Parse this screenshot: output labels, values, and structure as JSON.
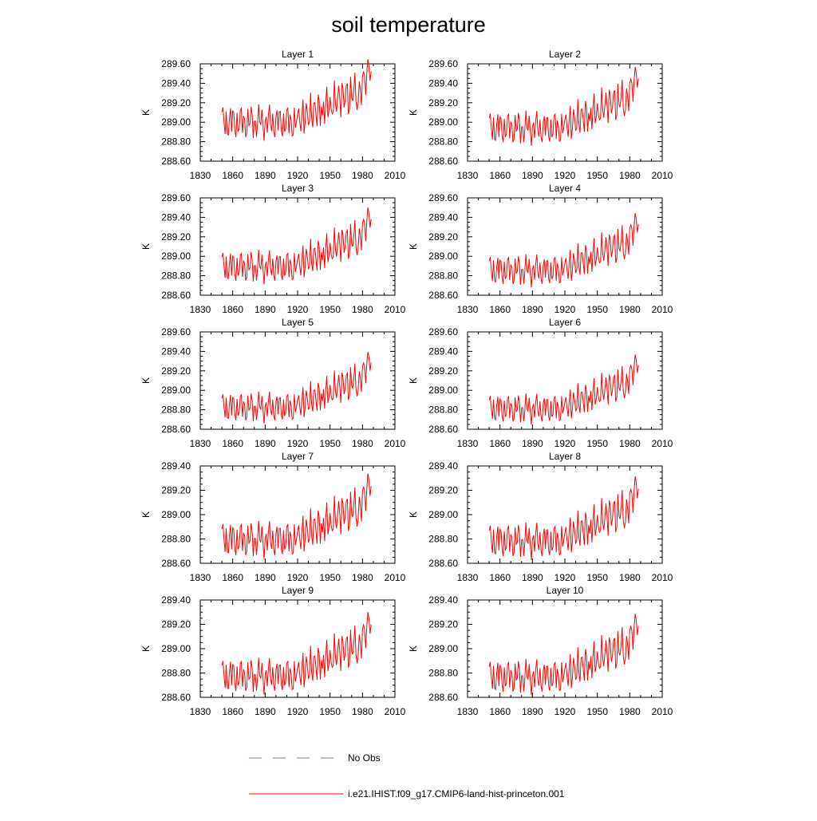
{
  "figure": {
    "title": "soil temperature",
    "legend": [
      {
        "label": "No Obs",
        "color": "#7a7fcc",
        "style": "dashed"
      },
      {
        "label": "i.e21.IHIST.f09_g17.CMIP6-land-hist-princeton.001",
        "color": "#ff0000",
        "style": "solid"
      }
    ]
  },
  "chart_data": [
    {
      "type": "line",
      "title": "Layer 1",
      "xlabel": "",
      "ylabel": "K",
      "xlim": [
        1830,
        2010
      ],
      "ylim": [
        288.6,
        289.6
      ],
      "xticks": [
        "1830",
        "1860",
        "1890",
        "1920",
        "1950",
        "1980",
        "2010"
      ],
      "yticks": [
        "288.60",
        "288.80",
        "289.00",
        "289.20",
        "289.40",
        "289.60"
      ],
      "offset": 0.12,
      "amp": 1.0,
      "series": [
        {
          "color": "#ff0000",
          "x_start": 1850,
          "x_end": 1988
        }
      ]
    },
    {
      "type": "line",
      "title": "Layer 2",
      "xlabel": "",
      "ylabel": "K",
      "xlim": [
        1830,
        2010
      ],
      "ylim": [
        288.6,
        289.6
      ],
      "xticks": [
        "1830",
        "1860",
        "1890",
        "1920",
        "1950",
        "1980",
        "2010"
      ],
      "yticks": [
        "288.60",
        "288.80",
        "289.00",
        "289.20",
        "289.40",
        "289.60"
      ],
      "offset": 0.07,
      "amp": 0.97,
      "series": [
        {
          "color": "#ff0000",
          "x_start": 1850,
          "x_end": 1988
        }
      ]
    },
    {
      "type": "line",
      "title": "Layer 3",
      "xlabel": "",
      "ylabel": "K",
      "xlim": [
        1830,
        2010
      ],
      "ylim": [
        288.6,
        289.6
      ],
      "xticks": [
        "1830",
        "1860",
        "1890",
        "1920",
        "1950",
        "1980",
        "2010"
      ],
      "yticks": [
        "288.60",
        "288.80",
        "289.00",
        "289.20",
        "289.40",
        "289.60"
      ],
      "offset": 0.03,
      "amp": 0.94,
      "series": [
        {
          "color": "#ff0000",
          "x_start": 1850,
          "x_end": 1988
        }
      ]
    },
    {
      "type": "line",
      "title": "Layer 4",
      "xlabel": "",
      "ylabel": "K",
      "xlim": [
        1830,
        2010
      ],
      "ylim": [
        288.6,
        289.6
      ],
      "xticks": [
        "1830",
        "1860",
        "1890",
        "1920",
        "1950",
        "1980",
        "2010"
      ],
      "yticks": [
        "288.60",
        "288.80",
        "289.00",
        "289.20",
        "289.40",
        "289.60"
      ],
      "offset": 0.0,
      "amp": 0.91,
      "series": [
        {
          "color": "#ff0000",
          "x_start": 1850,
          "x_end": 1988
        }
      ]
    },
    {
      "type": "line",
      "title": "Layer 5",
      "xlabel": "",
      "ylabel": "K",
      "xlim": [
        1830,
        2010
      ],
      "ylim": [
        288.6,
        289.6
      ],
      "xticks": [
        "1830",
        "1860",
        "1890",
        "1920",
        "1950",
        "1980",
        "2010"
      ],
      "yticks": [
        "288.60",
        "288.80",
        "289.00",
        "289.20",
        "289.40",
        "289.60"
      ],
      "offset": -0.02,
      "amp": 0.88,
      "series": [
        {
          "color": "#ff0000",
          "x_start": 1850,
          "x_end": 1988
        }
      ]
    },
    {
      "type": "line",
      "title": "Layer 6",
      "xlabel": "",
      "ylabel": "K",
      "xlim": [
        1830,
        2010
      ],
      "ylim": [
        288.6,
        289.6
      ],
      "xticks": [
        "1830",
        "1860",
        "1890",
        "1920",
        "1950",
        "1980",
        "2010"
      ],
      "yticks": [
        "288.60",
        "288.80",
        "289.00",
        "289.20",
        "289.40",
        "289.60"
      ],
      "offset": -0.03,
      "amp": 0.86,
      "series": [
        {
          "color": "#ff0000",
          "x_start": 1850,
          "x_end": 1988
        }
      ]
    },
    {
      "type": "line",
      "title": "Layer 7",
      "xlabel": "",
      "ylabel": "K",
      "xlim": [
        1830,
        2010
      ],
      "ylim": [
        288.6,
        289.4
      ],
      "xticks": [
        "1830",
        "1860",
        "1890",
        "1920",
        "1950",
        "1980",
        "2010"
      ],
      "yticks": [
        "288.60",
        "288.80",
        "289.00",
        "289.20",
        "289.40"
      ],
      "offset": -0.04,
      "amp": 0.84,
      "series": [
        {
          "color": "#ff0000",
          "x_start": 1850,
          "x_end": 1988
        }
      ]
    },
    {
      "type": "line",
      "title": "Layer 8",
      "xlabel": "",
      "ylabel": "K",
      "xlim": [
        1830,
        2010
      ],
      "ylim": [
        288.6,
        289.4
      ],
      "xticks": [
        "1830",
        "1860",
        "1890",
        "1920",
        "1950",
        "1980",
        "2010"
      ],
      "yticks": [
        "288.60",
        "288.80",
        "289.00",
        "289.20",
        "289.40"
      ],
      "offset": -0.045,
      "amp": 0.82,
      "series": [
        {
          "color": "#ff0000",
          "x_start": 1850,
          "x_end": 1988
        }
      ]
    },
    {
      "type": "line",
      "title": "Layer 9",
      "xlabel": "",
      "ylabel": "K",
      "xlim": [
        1830,
        2010
      ],
      "ylim": [
        288.6,
        289.4
      ],
      "xticks": [
        "1830",
        "1860",
        "1890",
        "1920",
        "1950",
        "1980",
        "2010"
      ],
      "yticks": [
        "288.60",
        "288.80",
        "289.00",
        "289.20",
        "289.40"
      ],
      "offset": -0.05,
      "amp": 0.81,
      "series": [
        {
          "color": "#ff0000",
          "x_start": 1850,
          "x_end": 1988
        }
      ]
    },
    {
      "type": "line",
      "title": "Layer 10",
      "xlabel": "",
      "ylabel": "K",
      "xlim": [
        1830,
        2010
      ],
      "ylim": [
        288.6,
        289.4
      ],
      "xticks": [
        "1830",
        "1860",
        "1890",
        "1920",
        "1950",
        "1980",
        "2010"
      ],
      "yticks": [
        "288.60",
        "288.80",
        "289.00",
        "289.20",
        "289.40"
      ],
      "offset": -0.055,
      "amp": 0.8,
      "series": [
        {
          "color": "#ff0000",
          "x_start": 1850,
          "x_end": 1988
        }
      ]
    }
  ]
}
